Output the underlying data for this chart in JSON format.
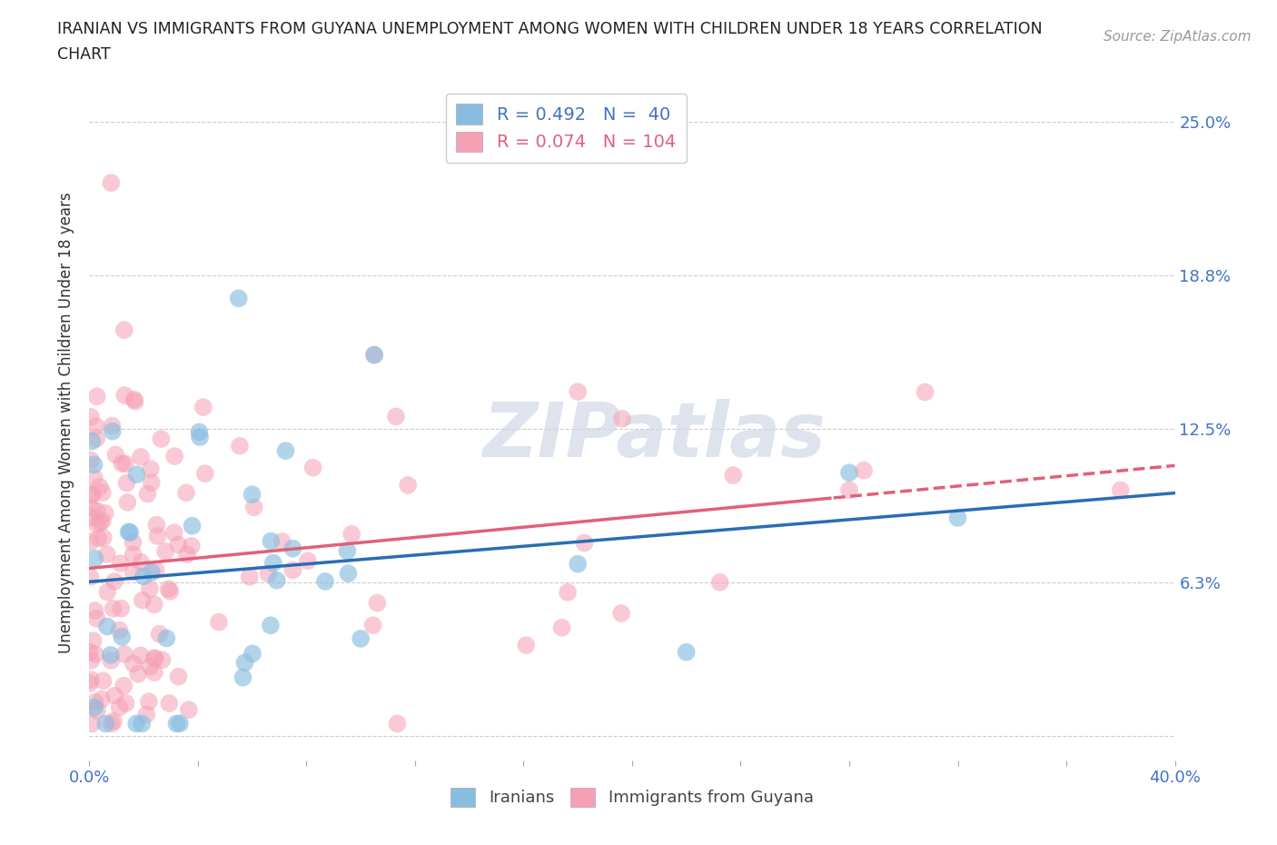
{
  "title_line1": "IRANIAN VS IMMIGRANTS FROM GUYANA UNEMPLOYMENT AMONG WOMEN WITH CHILDREN UNDER 18 YEARS CORRELATION",
  "title_line2": "CHART",
  "source": "Source: ZipAtlas.com",
  "ylabel": "Unemployment Among Women with Children Under 18 years",
  "xmin": 0.0,
  "xmax": 0.4,
  "ymin": -0.01,
  "ymax": 0.265,
  "group1_name": "Iranians",
  "group1_color": "#89bde0",
  "group1_line_color": "#2a6db5",
  "group1_R": 0.492,
  "group1_N": 40,
  "group2_name": "Immigrants from Guyana",
  "group2_color": "#f5a0b5",
  "group2_line_color": "#e0607a",
  "group2_R": 0.074,
  "group2_N": 104,
  "watermark": "ZIPatlas",
  "background_color": "#ffffff",
  "grid_color": "#cccccc",
  "axis_color": "#4472c4",
  "title_color": "#222222",
  "legend_text_color1": "#4472c4",
  "legend_text_color2": "#e06080"
}
